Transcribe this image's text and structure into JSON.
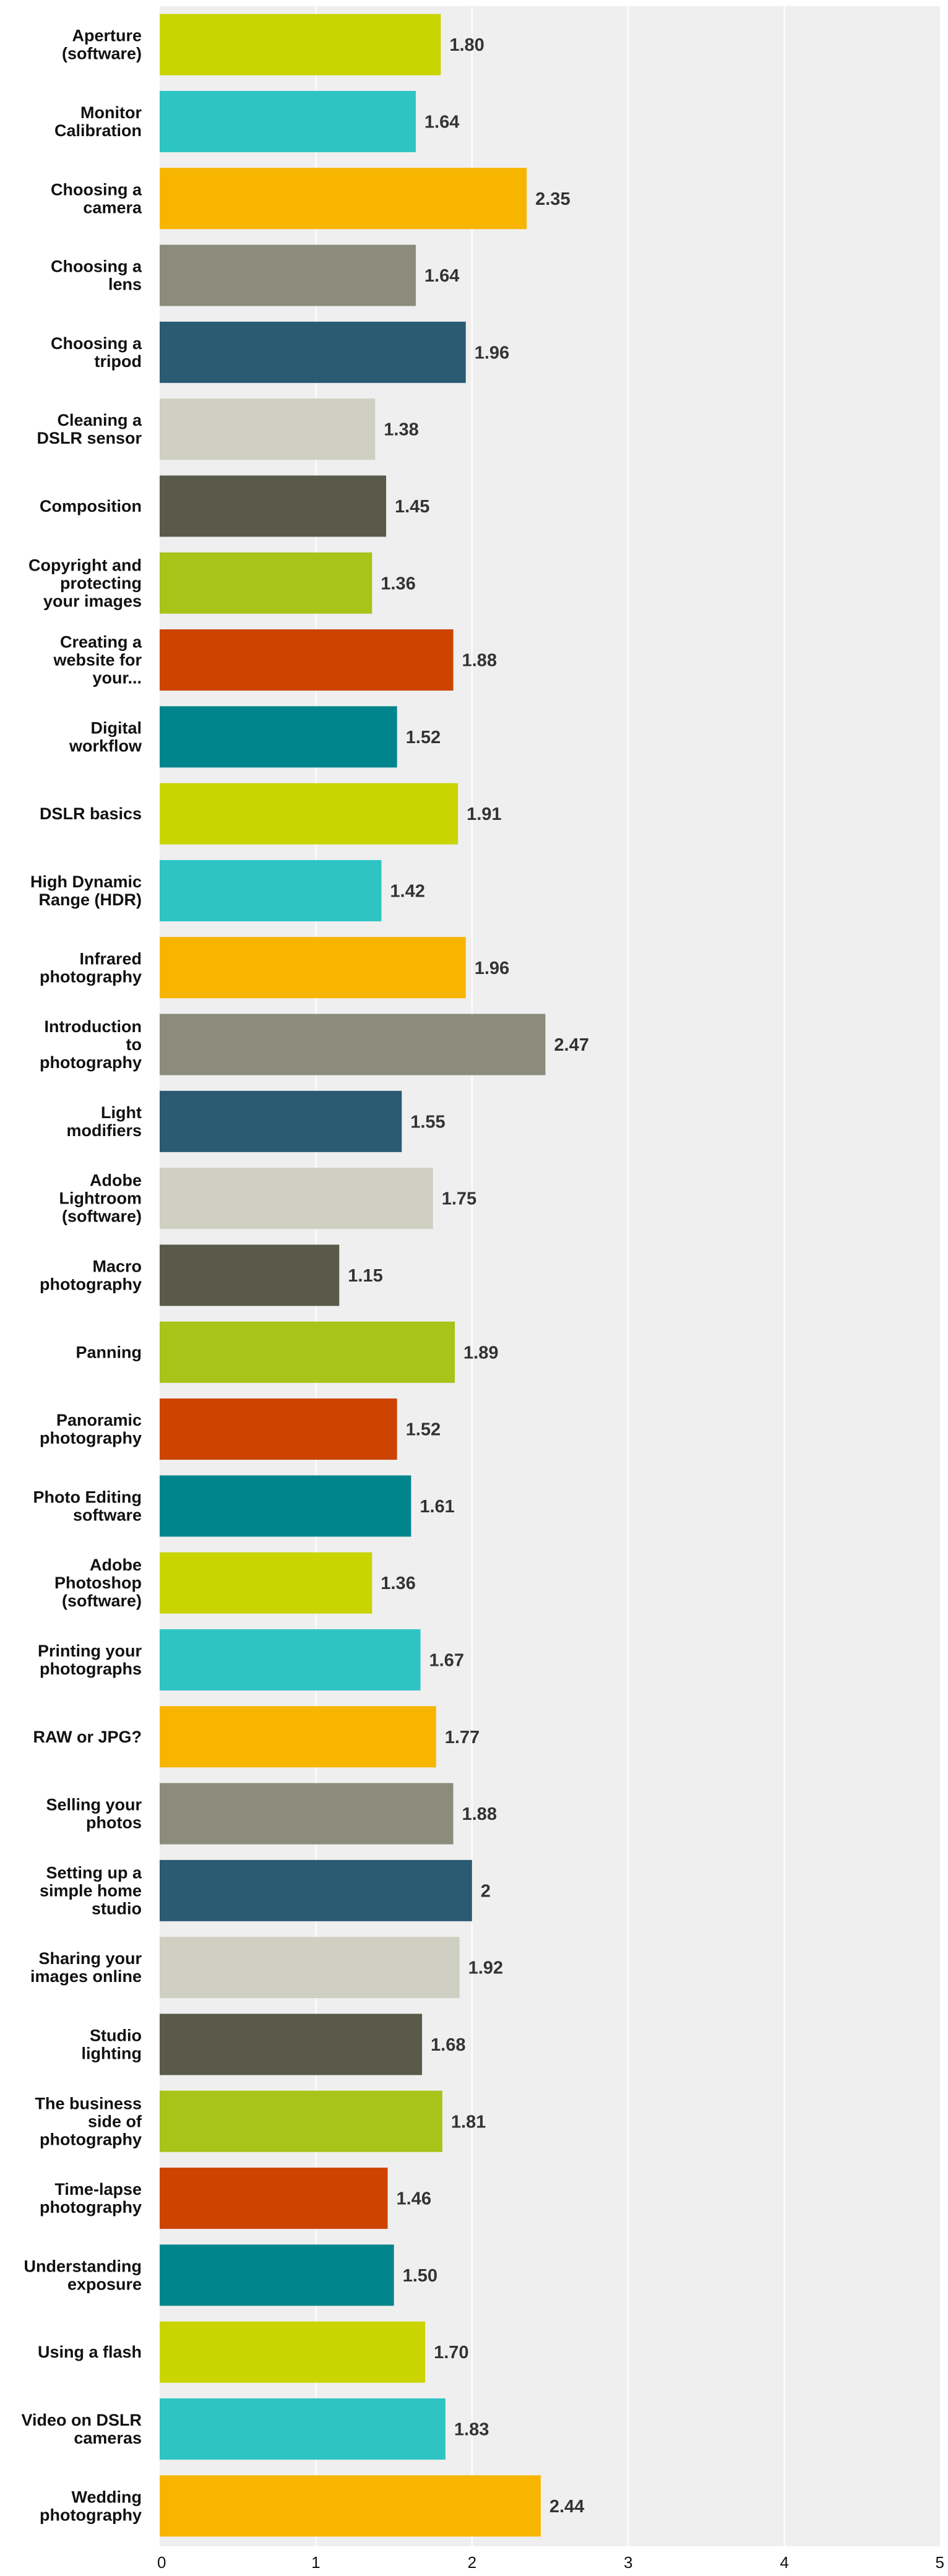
{
  "chart_data": {
    "type": "bar",
    "orientation": "horizontal",
    "categories": [
      [
        "Aperture",
        "(software)"
      ],
      [
        "Monitor",
        "Calibration"
      ],
      [
        "Choosing a",
        "camera"
      ],
      [
        "Choosing a",
        "lens"
      ],
      [
        "Choosing a",
        "tripod"
      ],
      [
        "Cleaning a",
        "DSLR sensor"
      ],
      [
        "Composition"
      ],
      [
        "Copyright and",
        "protecting",
        "your images"
      ],
      [
        "Creating a",
        "website for",
        "your..."
      ],
      [
        "Digital",
        "workflow"
      ],
      [
        "DSLR basics"
      ],
      [
        "High Dynamic",
        "Range (HDR)"
      ],
      [
        "Infrared",
        "photography"
      ],
      [
        "Introduction",
        "to",
        "photography"
      ],
      [
        "Light",
        "modifiers"
      ],
      [
        "Adobe",
        "Lightroom",
        "(software)"
      ],
      [
        "Macro",
        "photography"
      ],
      [
        "Panning"
      ],
      [
        "Panoramic",
        "photography"
      ],
      [
        "Photo Editing",
        "software"
      ],
      [
        "Adobe",
        "Photoshop",
        "(software)"
      ],
      [
        "Printing your",
        "photographs"
      ],
      [
        "RAW or JPG?"
      ],
      [
        "Selling your",
        "photos"
      ],
      [
        "Setting up a",
        "simple home",
        "studio"
      ],
      [
        "Sharing your",
        "images online"
      ],
      [
        "Studio",
        "lighting"
      ],
      [
        "The business",
        "side of",
        "photography"
      ],
      [
        "Time-lapse",
        "photography"
      ],
      [
        "Understanding",
        "exposure"
      ],
      [
        "Using a flash"
      ],
      [
        "Video on DSLR",
        "cameras"
      ],
      [
        "Wedding",
        "photography"
      ]
    ],
    "values": [
      1.8,
      1.64,
      2.35,
      1.64,
      1.96,
      1.38,
      1.45,
      1.36,
      1.88,
      1.52,
      1.91,
      1.42,
      1.96,
      2.47,
      1.55,
      1.75,
      1.15,
      1.89,
      1.52,
      1.61,
      1.36,
      1.67,
      1.77,
      1.88,
      2.0,
      1.92,
      1.68,
      1.81,
      1.46,
      1.5,
      1.7,
      1.83,
      2.44
    ],
    "value_labels": [
      "1.80",
      "1.64",
      "2.35",
      "1.64",
      "1.96",
      "1.38",
      "1.45",
      "1.36",
      "1.88",
      "1.52",
      "1.91",
      "1.42",
      "1.96",
      "2.47",
      "1.55",
      "1.75",
      "1.15",
      "1.89",
      "1.52",
      "1.61",
      "1.36",
      "1.67",
      "1.77",
      "1.88",
      "2",
      "1.92",
      "1.68",
      "1.81",
      "1.46",
      "1.50",
      "1.70",
      "1.83",
      "2.44"
    ],
    "palette": [
      "#c9d400",
      "#2ec4c4",
      "#f7b500",
      "#8c8c7c",
      "#2b5a73",
      "#cfcfc2",
      "#5a5a4a",
      "#a8c31a",
      "#cc4400",
      "#00858c"
    ],
    "xlim": [
      0,
      5
    ],
    "x_ticks": [
      "0",
      "1",
      "2",
      "3",
      "4",
      "5"
    ],
    "grid": true,
    "background": "#efefef",
    "gridline_color": "#ffffff",
    "title": "",
    "xlabel": "",
    "ylabel": ""
  }
}
